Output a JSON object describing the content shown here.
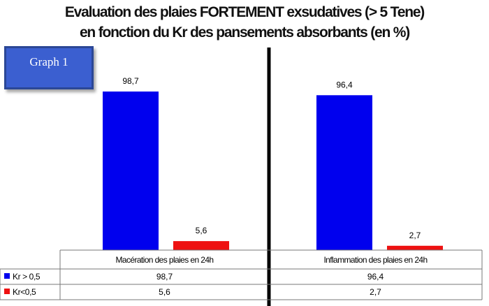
{
  "title_line1": "Evaluation des plaies FORTEMENT exsudatives (> 5 Tene)",
  "title_line2": "en fonction du Kr  des pansements absorbants (en %)",
  "graph_label": "Graph 1",
  "chart_data": {
    "type": "bar",
    "categories": [
      "Macération des plaies en 24h",
      "Inflammation des plaies en 24h"
    ],
    "series": [
      {
        "name": "Kr > 0,5",
        "color": "#0000ee",
        "values": [
          98.7,
          96.4
        ],
        "labels": [
          "98,7",
          "96,4"
        ]
      },
      {
        "name": "Kr<0,5",
        "color": "#ee1111",
        "values": [
          5.6,
          2.7
        ],
        "labels": [
          "5,6",
          "2,7"
        ]
      }
    ],
    "ylim": [
      0,
      100
    ],
    "legend": "data-table",
    "grid": false
  }
}
